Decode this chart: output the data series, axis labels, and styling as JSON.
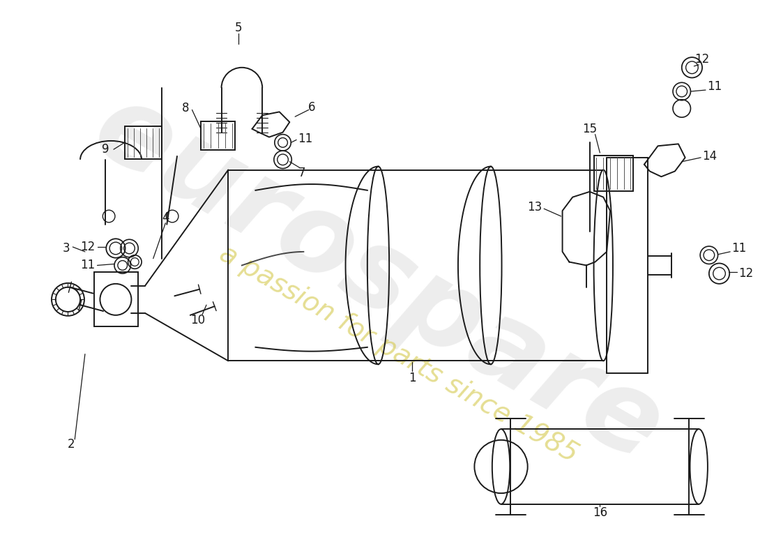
{
  "bg_color": "#ffffff",
  "line_color": "#1a1a1a",
  "lw": 1.4,
  "watermark1": "eurospare",
  "watermark2": "a passion for parts since 1985",
  "wm_gray": "#cccccc",
  "wm_yellow": "#d4c84a"
}
